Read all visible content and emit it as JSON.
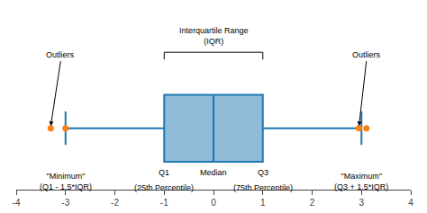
{
  "chart_data": {
    "type": "box",
    "orientation": "horizontal",
    "q1": -1,
    "median": 0,
    "q3": 1,
    "whisker_low": -3,
    "whisker_high": 3,
    "outliers": [
      -3.3,
      -3.0,
      2.95,
      3.1
    ],
    "xlim": [
      -4,
      4
    ],
    "xticks": [
      -4,
      -3,
      -2,
      -1,
      0,
      1,
      2,
      3,
      4
    ],
    "ylim": [
      -0.55,
      1.1
    ],
    "tick_labels": "x",
    "grid": false,
    "iqr_bracket": {
      "x": [
        -1,
        1
      ],
      "y": 0.68
    },
    "annotations": [
      {
        "text": "Interquartile Range\n(IQR)",
        "x": 0,
        "y": 0.72
      },
      {
        "text": "Outliers",
        "x": -3.1,
        "y": 0.6,
        "arrow_x": -3.3,
        "arrow_y": 0.02
      },
      {
        "text": "Outliers",
        "x": 3.1,
        "y": 0.6,
        "arrow_x": 2.95,
        "arrow_y": 0.02
      },
      {
        "text": "\"Minimum\"\n(Q1 - 1.5*IQR)",
        "x": -3.0,
        "y": -0.37
      },
      {
        "text": "\"Maximum\"\n(Q3 + 1.5*IQR)",
        "x": 3.0,
        "y": -0.37
      },
      {
        "text": "Q1",
        "x": -1,
        "y": -0.34
      },
      {
        "text": "Median",
        "x": 0,
        "y": -0.34
      },
      {
        "text": "Q3",
        "x": 1,
        "y": -0.34
      },
      {
        "text": "(25th Percentile)",
        "x": -1,
        "y": -0.48
      },
      {
        "text": "(75th Percentile)",
        "x": 1,
        "y": -0.48
      }
    ]
  }
}
